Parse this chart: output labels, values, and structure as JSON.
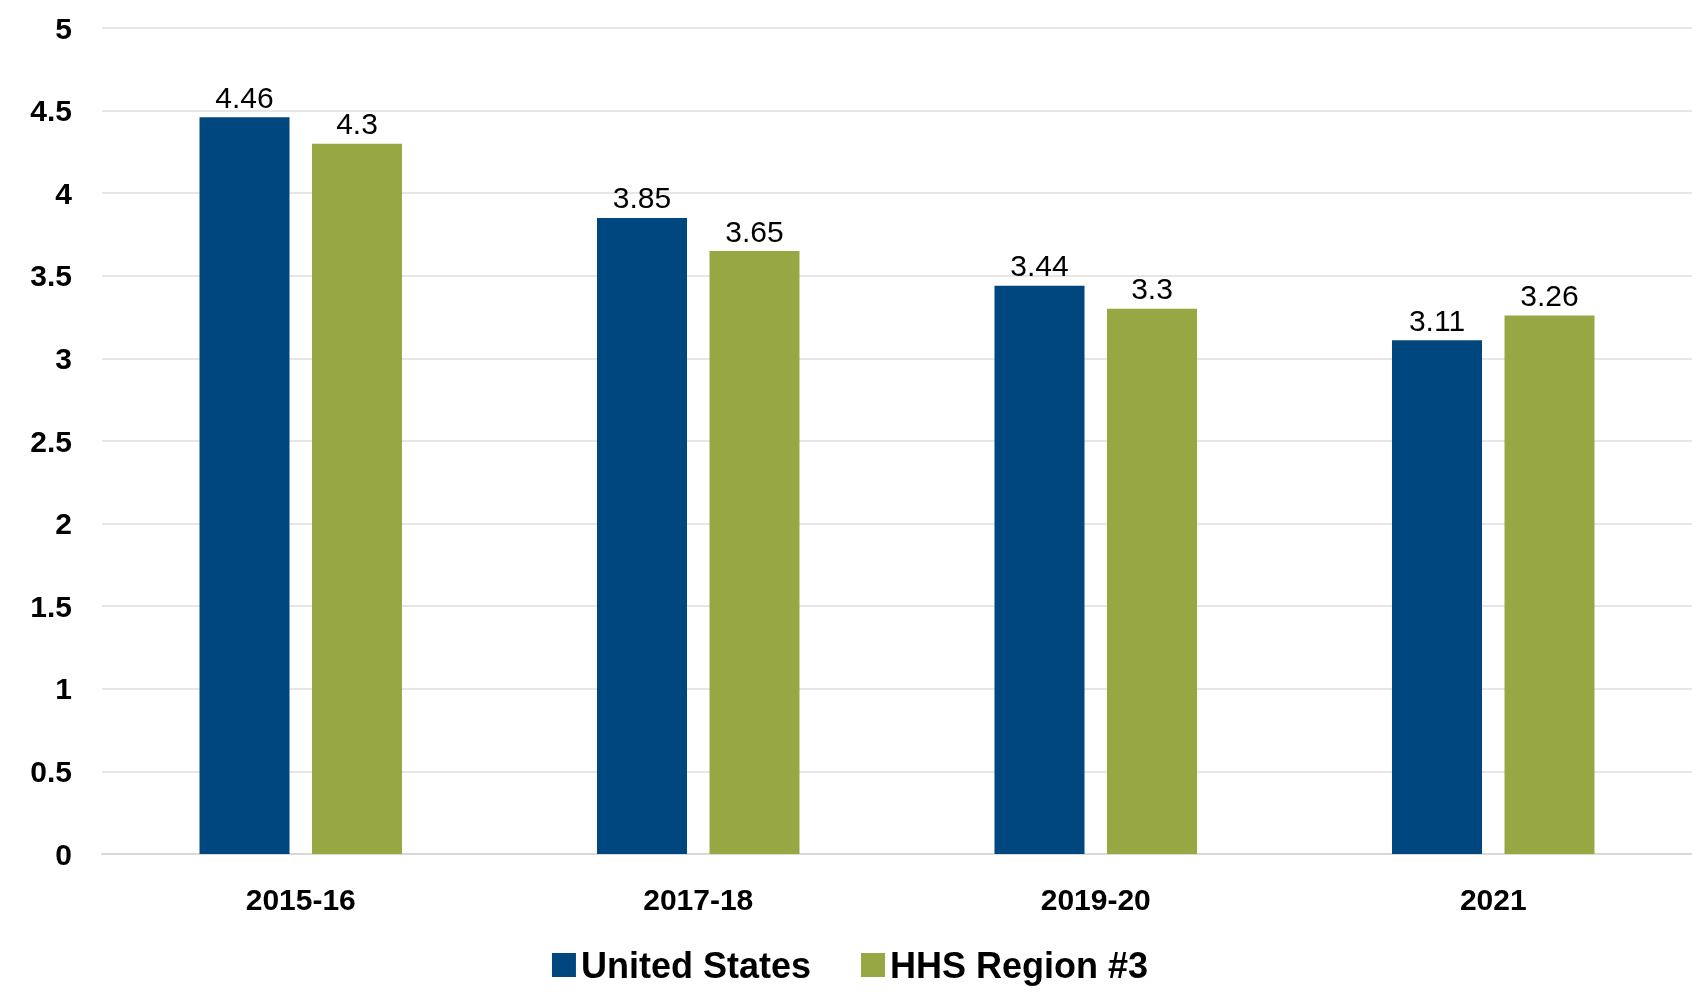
{
  "chart_data": {
    "type": "bar",
    "categories": [
      "2015-16",
      "2017-18",
      "2019-20",
      "2021"
    ],
    "series": [
      {
        "name": "United States",
        "color": "#00477f",
        "values": [
          4.46,
          3.85,
          3.44,
          3.11
        ]
      },
      {
        "name": "HHS Region #3",
        "color": "#96a744",
        "values": [
          4.3,
          3.65,
          3.3,
          3.26
        ]
      }
    ],
    "ylim": [
      0,
      5
    ],
    "yticks": [
      0,
      0.5,
      1,
      1.5,
      2,
      2.5,
      3,
      3.5,
      4,
      4.5,
      5
    ],
    "grid": "y",
    "legend": "bottom",
    "data_labels": true
  }
}
